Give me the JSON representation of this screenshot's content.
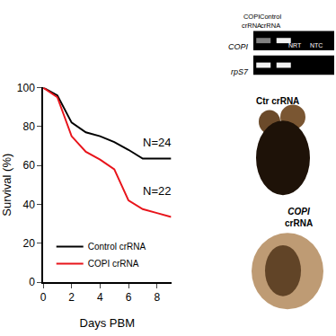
{
  "chart_data": {
    "type": "line",
    "x": [
      0,
      1,
      2,
      3,
      4,
      5,
      6,
      7,
      8,
      9
    ],
    "series": [
      {
        "name": "Control crRNA",
        "color": "#000000",
        "values": [
          100,
          96,
          82,
          77,
          75,
          72,
          68,
          63.5,
          63.5,
          63.5
        ]
      },
      {
        "name": "COPI crRNA",
        "color": "#e8141b",
        "values": [
          100,
          95,
          75,
          67,
          63,
          58,
          42,
          37.5,
          35.5,
          33.5
        ]
      }
    ],
    "xlabel": "Days PBM",
    "ylabel": "Survival (%)",
    "xlim": [
      0,
      9
    ],
    "ylim": [
      0,
      100
    ],
    "xticks": [
      0,
      2,
      4,
      6,
      8
    ],
    "yticks": [
      0,
      20,
      40,
      60,
      80,
      100
    ],
    "annotations": [
      {
        "text": "N=24",
        "x": 8,
        "y": 72
      },
      {
        "text": "N=22",
        "x": 8,
        "y": 47
      }
    ],
    "legend": "lower left",
    "grid": false
  },
  "gel": {
    "lanes": [
      "COPI crRNA",
      "Control crRNA"
    ],
    "controls": [
      "NRT",
      "NTC"
    ],
    "genes": [
      "COPI",
      "rpS7"
    ]
  },
  "images": [
    {
      "label": "Ctr crRNA"
    },
    {
      "label": "COPI crRNA"
    }
  ]
}
